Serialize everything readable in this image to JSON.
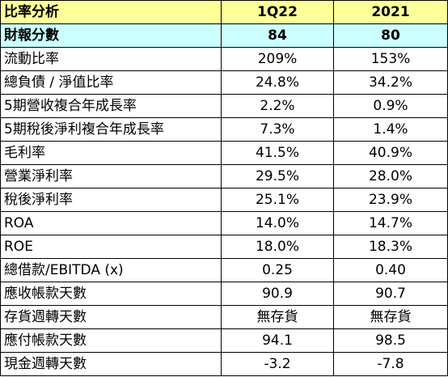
{
  "header": {
    "label": "比率分析",
    "col1": "1Q22",
    "col2": "2021"
  },
  "score": {
    "label": "財報分數",
    "col1": "84",
    "col2": "80"
  },
  "rows": [
    {
      "label": "流動比率",
      "col1": "209%",
      "col2": "153%"
    },
    {
      "label": "總負債 / 淨值比率",
      "col1": "24.8%",
      "col2": "34.2%"
    },
    {
      "label": "5期營收複合年成長率",
      "col1": "2.2%",
      "col2": "0.9%"
    },
    {
      "label": "5期稅後淨利複合年成長率",
      "col1": "7.3%",
      "col2": "1.4%"
    },
    {
      "label": "毛利率",
      "col1": "41.5%",
      "col2": "40.9%"
    },
    {
      "label": "營業淨利率",
      "col1": "29.5%",
      "col2": "28.0%"
    },
    {
      "label": "稅後淨利率",
      "col1": "25.1%",
      "col2": "23.9%"
    },
    {
      "label": "ROA",
      "col1": "14.0%",
      "col2": "14.7%"
    },
    {
      "label": "ROE",
      "col1": "18.0%",
      "col2": "18.3%"
    },
    {
      "label": "總借款/EBITDA (x)",
      "col1": "0.25",
      "col2": "0.40"
    },
    {
      "label": "應收帳款天數",
      "col1": "90.9",
      "col2": "90.7"
    },
    {
      "label": "存貨週轉天數",
      "col1": "無存貨",
      "col2": "無存貨"
    },
    {
      "label": "應付帳款天數",
      "col1": "94.1",
      "col2": "98.5"
    },
    {
      "label": "現金週轉天數",
      "col1": "-3.2",
      "col2": "-7.8"
    }
  ],
  "colors": {
    "header_bg": "#ffff99",
    "score_bg": "#ccffff",
    "border": "#000000"
  }
}
